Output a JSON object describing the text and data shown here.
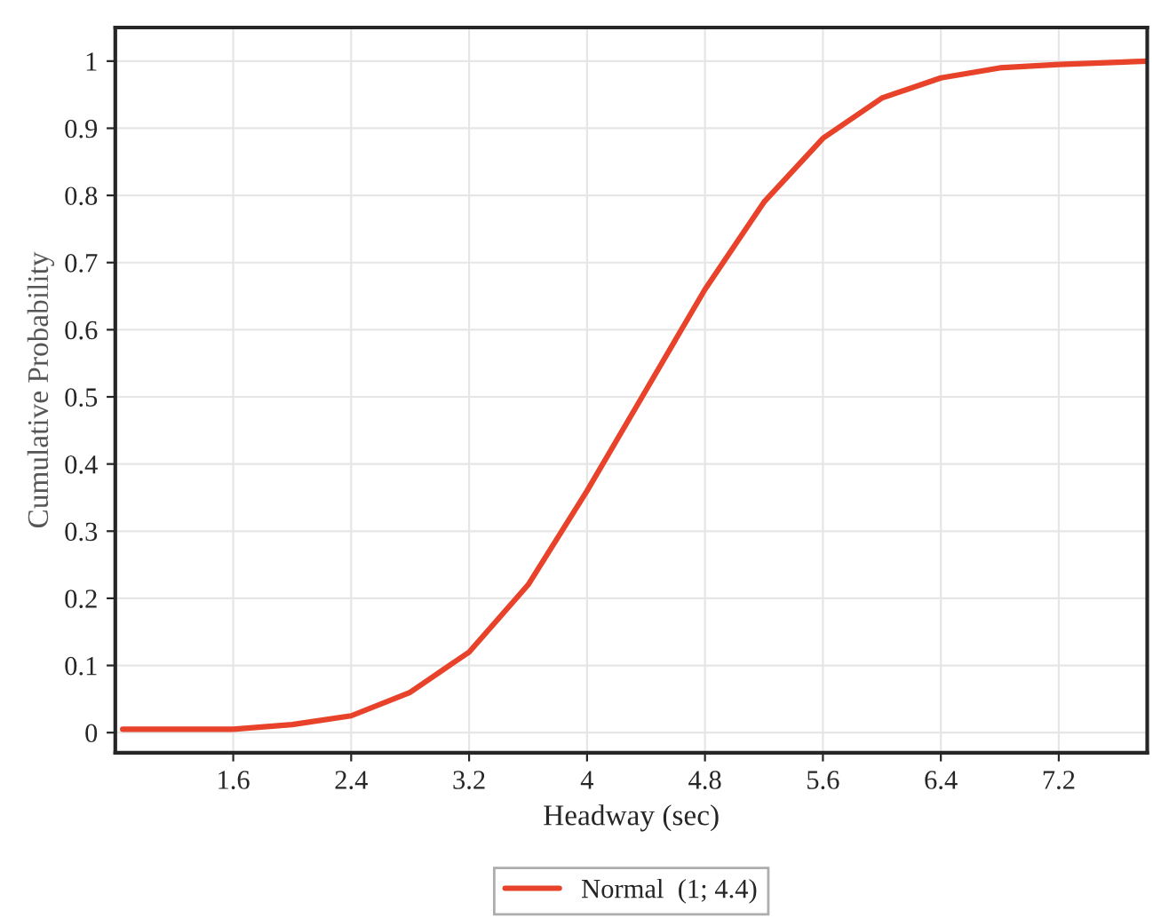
{
  "chart_data": {
    "type": "line",
    "xlabel": "Headway (sec)",
    "ylabel": "Cumulative Probability",
    "x": [
      0.85,
      1.6,
      2.0,
      2.4,
      2.8,
      3.2,
      3.6,
      4.0,
      4.4,
      4.8,
      5.2,
      5.6,
      6.0,
      6.4,
      6.8,
      7.2,
      7.8
    ],
    "series": [
      {
        "name": "Normal  (1; 4.4)",
        "color": "#e8432a",
        "values": [
          0.005,
          0.005,
          0.012,
          0.025,
          0.06,
          0.12,
          0.22,
          0.36,
          0.51,
          0.66,
          0.79,
          0.885,
          0.945,
          0.975,
          0.99,
          0.995,
          1.0
        ]
      }
    ],
    "xlim": [
      0.8,
      7.8
    ],
    "xticks": [
      1.6,
      2.4,
      3.2,
      4,
      4.8,
      5.6,
      6.4,
      7.2
    ],
    "ylim": [
      -0.03,
      1.05
    ],
    "yticks": [
      0,
      0.1,
      0.2,
      0.3,
      0.4,
      0.5,
      0.6,
      0.7,
      0.8,
      0.9,
      1
    ],
    "grid": true,
    "legend": "bottom",
    "line_style": "solid"
  }
}
